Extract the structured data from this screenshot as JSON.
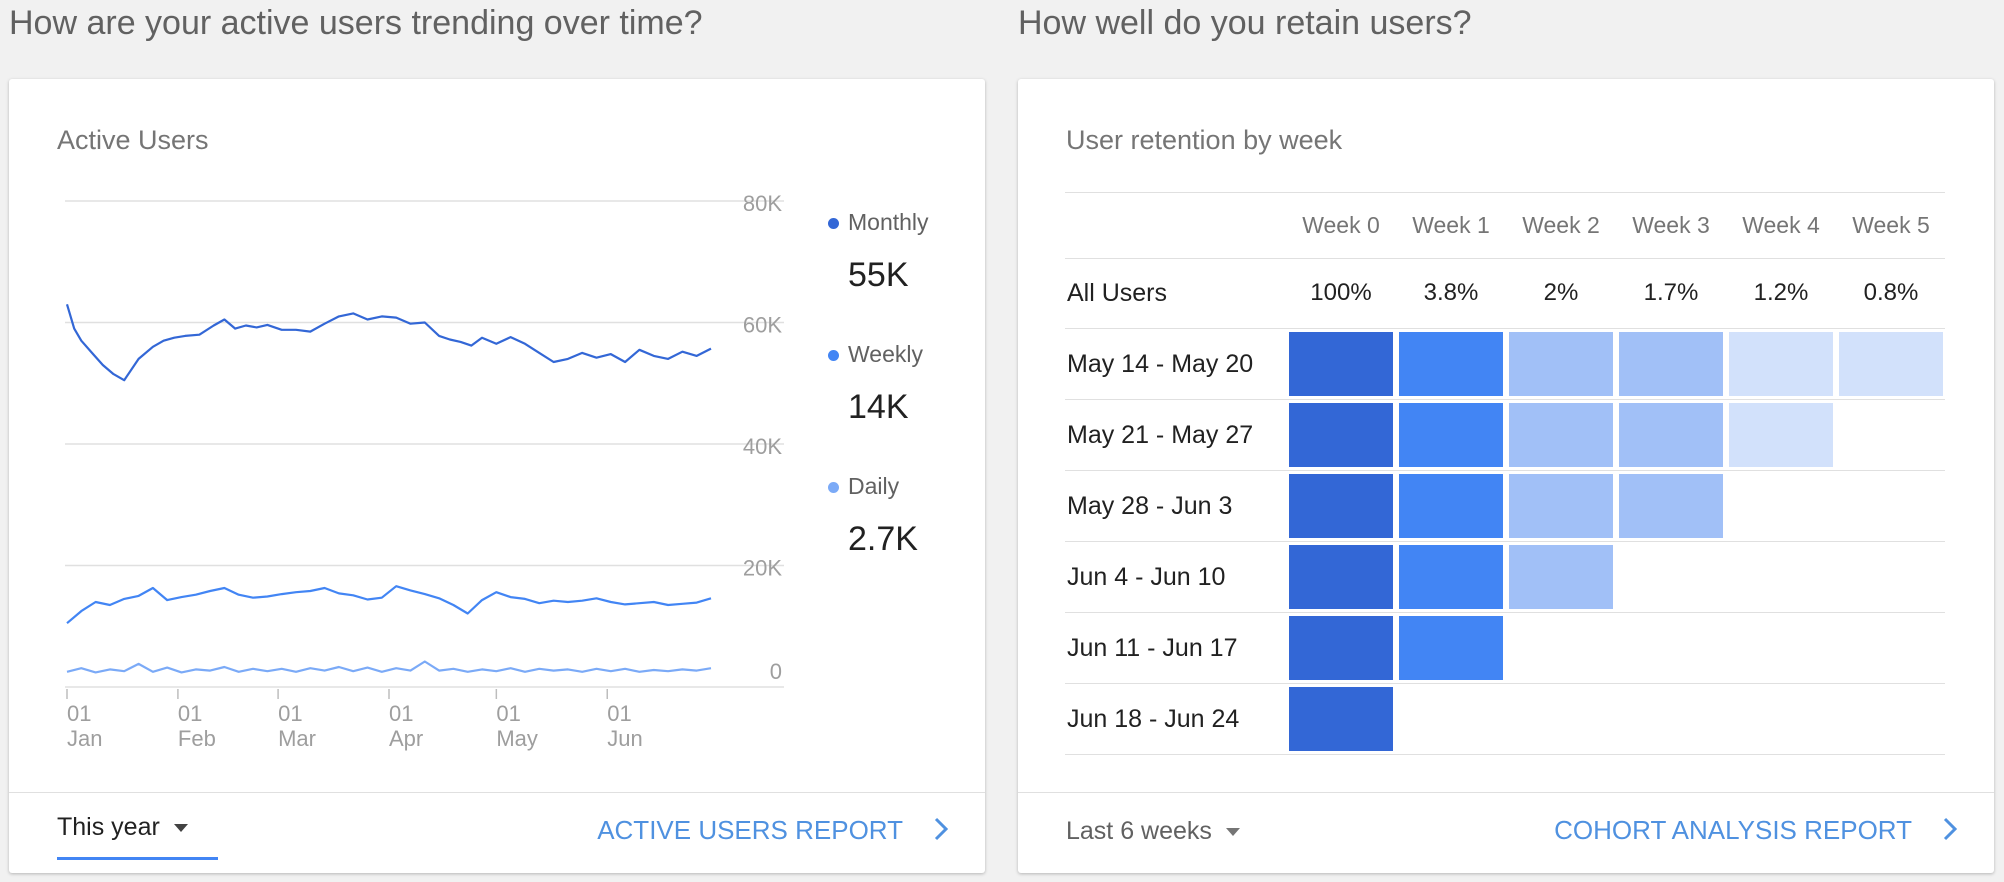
{
  "left": {
    "section_title": "How are your active users trending over time?",
    "card_title": "Active Users",
    "legend": [
      {
        "label": "Monthly",
        "value": "55K",
        "color": "#3367d6"
      },
      {
        "label": "Weekly",
        "value": "14K",
        "color": "#4285f4"
      },
      {
        "label": "Daily",
        "value": "2.7K",
        "color": "#7baaf7"
      }
    ],
    "chart_data": {
      "type": "line",
      "title": "Active Users",
      "xlabel": "",
      "ylabel": "",
      "ylim": [
        0,
        80000
      ],
      "y_ticks": [
        "80K",
        "60K",
        "40K",
        "20K",
        "0"
      ],
      "x_ticks": [
        [
          "01",
          "Jan"
        ],
        [
          "01",
          "Feb"
        ],
        [
          "01",
          "Mar"
        ],
        [
          "01",
          "Apr"
        ],
        [
          "01",
          "May"
        ],
        [
          "01",
          "Jun"
        ]
      ],
      "x_range_days": [
        0,
        180
      ],
      "series": [
        {
          "name": "Monthly",
          "color": "#3367d6",
          "x": [
            0,
            2,
            4,
            7,
            10,
            13,
            16,
            20,
            24,
            27,
            30,
            33,
            37,
            41,
            44,
            47,
            50,
            53,
            56,
            60,
            64,
            68,
            72,
            76,
            80,
            84,
            88,
            92,
            96,
            100,
            104,
            107,
            110,
            113,
            116,
            120,
            124,
            128,
            132,
            136,
            140,
            144,
            148,
            152,
            156,
            160,
            164,
            168,
            172,
            176,
            180
          ],
          "values": [
            63000,
            59000,
            57000,
            55000,
            53000,
            51500,
            50500,
            54000,
            56000,
            57000,
            57500,
            57800,
            58000,
            59500,
            60500,
            59000,
            59500,
            59200,
            59600,
            58800,
            58800,
            58500,
            59800,
            61000,
            61500,
            60500,
            61000,
            60800,
            59800,
            60000,
            57800,
            57200,
            56800,
            56200,
            57500,
            56500,
            57600,
            56500,
            55000,
            53500,
            54000,
            55000,
            54200,
            54800,
            53500,
            55500,
            54500,
            54000,
            55200,
            54500,
            55700
          ]
        },
        {
          "name": "Weekly",
          "color": "#4285f4",
          "x": [
            0,
            4,
            8,
            12,
            16,
            20,
            24,
            28,
            32,
            36,
            40,
            44,
            48,
            52,
            56,
            60,
            64,
            68,
            72,
            76,
            80,
            84,
            88,
            92,
            96,
            100,
            104,
            108,
            112,
            116,
            120,
            124,
            128,
            132,
            136,
            140,
            144,
            148,
            152,
            156,
            160,
            164,
            168,
            172,
            176,
            180
          ],
          "values": [
            10500,
            12500,
            14000,
            13500,
            14500,
            15000,
            16300,
            14300,
            14800,
            15200,
            15800,
            16300,
            15200,
            14700,
            14900,
            15300,
            15600,
            15800,
            16300,
            15400,
            15100,
            14400,
            14700,
            16600,
            15900,
            15300,
            14600,
            13500,
            12100,
            14300,
            15600,
            14800,
            14500,
            13800,
            14200,
            14000,
            14200,
            14600,
            14000,
            13600,
            13800,
            14000,
            13500,
            13700,
            13900,
            14600
          ]
        },
        {
          "name": "Daily",
          "color": "#7baaf7",
          "x": [
            0,
            4,
            8,
            12,
            16,
            20,
            24,
            28,
            32,
            36,
            40,
            44,
            48,
            52,
            56,
            60,
            64,
            68,
            72,
            76,
            80,
            84,
            88,
            92,
            96,
            100,
            104,
            108,
            112,
            116,
            120,
            124,
            128,
            132,
            136,
            140,
            144,
            148,
            152,
            156,
            160,
            164,
            168,
            172,
            176,
            180
          ],
          "values": [
            2500,
            3100,
            2400,
            2900,
            2600,
            3800,
            2500,
            3200,
            2400,
            2900,
            2700,
            3300,
            2500,
            3000,
            2600,
            3000,
            2500,
            3100,
            2700,
            3300,
            2600,
            3200,
            2500,
            3100,
            2700,
            4200,
            2700,
            3000,
            2500,
            2900,
            2600,
            3100,
            2500,
            3000,
            2700,
            2900,
            2500,
            3000,
            2600,
            3000,
            2500,
            2800,
            2600,
            2900,
            2700,
            3100
          ]
        }
      ]
    },
    "footer": {
      "range_label": "This year",
      "report_link": "ACTIVE USERS REPORT"
    }
  },
  "right": {
    "section_title": "How well do you retain users?",
    "card_title": "User retention by week",
    "colors": {
      "level_strong": "#3367d6",
      "level_high": "#4285f4",
      "level_mid": "#a1c0f7",
      "level_low": "#d2e1fb"
    },
    "table": {
      "columns": [
        "Week 0",
        "Week 1",
        "Week 2",
        "Week 3",
        "Week 4",
        "Week 5"
      ],
      "all_users": {
        "label": "All Users",
        "values": [
          "100%",
          "3.8%",
          "2%",
          "1.7%",
          "1.2%",
          "0.8%"
        ]
      },
      "cohorts": [
        {
          "label": "May 14 - May 20",
          "levels": [
            "strong",
            "high",
            "mid",
            "mid",
            "low",
            "low"
          ]
        },
        {
          "label": "May 21 - May 27",
          "levels": [
            "strong",
            "high",
            "mid",
            "mid",
            "low"
          ]
        },
        {
          "label": "May 28 - Jun 3",
          "levels": [
            "strong",
            "high",
            "mid",
            "mid"
          ]
        },
        {
          "label": "Jun 4 - Jun 10",
          "levels": [
            "strong",
            "high",
            "mid"
          ]
        },
        {
          "label": "Jun 11 - Jun 17",
          "levels": [
            "strong",
            "high"
          ]
        },
        {
          "label": "Jun 18 - Jun 24",
          "levels": [
            "strong"
          ]
        }
      ]
    },
    "footer": {
      "range_label": "Last 6 weeks",
      "report_link": "COHORT ANALYSIS REPORT"
    }
  }
}
